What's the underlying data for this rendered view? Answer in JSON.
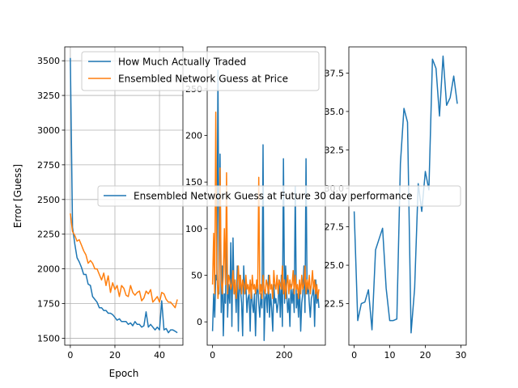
{
  "colors": {
    "blue": "#1f77b4",
    "orange": "#ff7f0e",
    "grid": "#b0b0b0"
  },
  "chart_data": [
    {
      "type": "line",
      "xlabel": "Epoch",
      "ylabel": "Error [Guess]",
      "xlim": [
        -2.5,
        50.5
      ],
      "ylim": [
        1450,
        3600
      ],
      "xticks": [
        0,
        20,
        40
      ],
      "yticks": [
        1500,
        1750,
        2000,
        2250,
        2500,
        2750,
        3000,
        3250,
        3500
      ],
      "grid": true,
      "legend_position": "upper-right",
      "series": [
        {
          "name": "How Much Actually Traded",
          "color": "#1f77b4",
          "x": [
            0,
            1,
            2,
            3,
            4,
            5,
            6,
            7,
            8,
            9,
            10,
            11,
            12,
            13,
            14,
            15,
            16,
            17,
            18,
            19,
            20,
            21,
            22,
            23,
            24,
            25,
            26,
            27,
            28,
            29,
            30,
            31,
            32,
            33,
            34,
            35,
            36,
            37,
            38,
            39,
            40,
            41,
            42,
            43,
            44,
            45,
            46,
            47,
            48
          ],
          "values": [
            3520,
            2300,
            2180,
            2080,
            2050,
            2010,
            1960,
            1960,
            1890,
            1880,
            1800,
            1780,
            1760,
            1720,
            1720,
            1700,
            1700,
            1680,
            1680,
            1670,
            1650,
            1630,
            1640,
            1620,
            1620,
            1620,
            1600,
            1610,
            1590,
            1620,
            1600,
            1600,
            1580,
            1590,
            1690,
            1580,
            1600,
            1580,
            1560,
            1580,
            1560,
            1770,
            1560,
            1570,
            1540,
            1560,
            1560,
            1550,
            1540
          ]
        },
        {
          "name": "Ensembled Network Guess at Price",
          "color": "#ff7f0e",
          "x": [
            0,
            1,
            2,
            3,
            4,
            5,
            6,
            7,
            8,
            9,
            10,
            11,
            12,
            13,
            14,
            15,
            16,
            17,
            18,
            19,
            20,
            21,
            22,
            23,
            24,
            25,
            26,
            27,
            28,
            29,
            30,
            31,
            32,
            33,
            34,
            35,
            36,
            37,
            38,
            39,
            40,
            41,
            42,
            43,
            44,
            45,
            46,
            47,
            48
          ],
          "values": [
            2400,
            2270,
            2240,
            2200,
            2210,
            2170,
            2130,
            2100,
            2040,
            2060,
            2040,
            2000,
            2000,
            1960,
            1920,
            1970,
            1880,
            1950,
            1830,
            1900,
            1850,
            1880,
            1800,
            1880,
            1860,
            1810,
            1800,
            1880,
            1830,
            1810,
            1830,
            1840,
            1770,
            1790,
            1840,
            1820,
            1850,
            1760,
            1780,
            1800,
            1760,
            1830,
            1820,
            1780,
            1760,
            1760,
            1740,
            1720,
            1780
          ]
        }
      ]
    },
    {
      "type": "line",
      "xlim": [
        -15,
        315
      ],
      "ylim": [
        -25,
        295
      ],
      "xticks": [
        0,
        200
      ],
      "yticks": [
        0,
        50,
        100,
        150,
        200,
        250
      ],
      "grid": false,
      "series": [
        {
          "color": "#1f77b4",
          "x": [
            0,
            3,
            6,
            9,
            12,
            15,
            18,
            21,
            24,
            27,
            30,
            33,
            36,
            39,
            42,
            45,
            48,
            51,
            54,
            57,
            60,
            63,
            66,
            69,
            72,
            75,
            78,
            81,
            84,
            87,
            90,
            93,
            96,
            99,
            102,
            105,
            108,
            111,
            114,
            117,
            120,
            123,
            126,
            129,
            132,
            135,
            138,
            141,
            144,
            147,
            150,
            153,
            156,
            159,
            162,
            165,
            168,
            171,
            174,
            177,
            180,
            183,
            186,
            189,
            192,
            195,
            198,
            201,
            204,
            207,
            210,
            213,
            216,
            219,
            222,
            225,
            228,
            231,
            234,
            237,
            240,
            243,
            246,
            249,
            252,
            255,
            258,
            261,
            264,
            267,
            270,
            273,
            276,
            279,
            282,
            285,
            288,
            291,
            294,
            297
          ],
          "values": [
            -10,
            30,
            5,
            50,
            45,
            270,
            30,
            180,
            10,
            60,
            -15,
            30,
            20,
            110,
            5,
            40,
            20,
            85,
            -5,
            90,
            30,
            40,
            10,
            60,
            -10,
            50,
            35,
            20,
            -15,
            60,
            30,
            40,
            10,
            25,
            30,
            -10,
            40,
            20,
            10,
            30,
            -15,
            30,
            40,
            20,
            5,
            30,
            15,
            190,
            -20,
            25,
            30,
            10,
            50,
            5,
            30,
            15,
            -10,
            40,
            20,
            25,
            10,
            20,
            45,
            5,
            50,
            -5,
            175,
            20,
            60,
            30,
            10,
            25,
            -5,
            40,
            20,
            35,
            10,
            145,
            15,
            30,
            5,
            40,
            -10,
            20,
            30,
            60,
            10,
            175,
            30,
            40,
            20,
            5,
            25,
            30,
            40,
            -5,
            45,
            20,
            30,
            15
          ]
        },
        {
          "color": "#ff7f0e",
          "x": [
            0,
            3,
            6,
            9,
            12,
            15,
            18,
            21,
            24,
            27,
            30,
            33,
            36,
            39,
            42,
            45,
            48,
            51,
            54,
            57,
            60,
            63,
            66,
            69,
            72,
            75,
            78,
            81,
            84,
            87,
            90,
            93,
            96,
            99,
            102,
            105,
            108,
            111,
            114,
            117,
            120,
            123,
            126,
            129,
            132,
            135,
            138,
            141,
            144,
            147,
            150,
            153,
            156,
            159,
            162,
            165,
            168,
            171,
            174,
            177,
            180,
            183,
            186,
            189,
            192,
            195,
            198,
            201,
            204,
            207,
            210,
            213,
            216,
            219,
            222,
            225,
            228,
            231,
            234,
            237,
            240,
            243,
            246,
            249,
            252,
            255,
            258,
            261,
            264,
            267,
            270,
            273,
            276,
            279,
            282,
            285,
            288,
            291,
            294,
            297
          ],
          "values": [
            40,
            95,
            30,
            225,
            60,
            25,
            40,
            165,
            45,
            30,
            50,
            100,
            40,
            160,
            30,
            50,
            45,
            35,
            40,
            55,
            30,
            45,
            25,
            40,
            60,
            35,
            50,
            30,
            45,
            40,
            30,
            50,
            35,
            40,
            30,
            45,
            25,
            50,
            35,
            40,
            30,
            45,
            35,
            155,
            30,
            40,
            25,
            50,
            35,
            30,
            45,
            40,
            30,
            50,
            35,
            40,
            25,
            55,
            40,
            35,
            50,
            30,
            45,
            40,
            35,
            60,
            30,
            45,
            25,
            40,
            50,
            30,
            45,
            35,
            40,
            55,
            30,
            50,
            35,
            40,
            25,
            45,
            30,
            50,
            35,
            40,
            60,
            30,
            45,
            35,
            50,
            30,
            40,
            55,
            35,
            45,
            30,
            40,
            25,
            35
          ]
        }
      ]
    },
    {
      "type": "line",
      "xlim": [
        -1.5,
        31.5
      ],
      "ylim": [
        19.8,
        39.2
      ],
      "xticks": [
        0,
        10,
        20,
        30
      ],
      "yticks": [
        22.5,
        25.0,
        27.5,
        30.0,
        32.5,
        35.0,
        37.5
      ],
      "grid": false,
      "series": [
        {
          "color": "#1f77b4",
          "x": [
            0,
            1,
            2,
            3,
            4,
            5,
            6,
            7,
            8,
            9,
            10,
            11,
            12,
            13,
            14,
            15,
            16,
            17,
            18,
            19,
            20,
            21,
            22,
            23,
            24,
            25,
            26,
            27,
            28,
            29
          ],
          "values": [
            28.5,
            21.4,
            22.5,
            22.6,
            23.4,
            20.8,
            26.0,
            26.7,
            27.4,
            23.5,
            21.4,
            21.4,
            21.5,
            31.6,
            35.2,
            34.3,
            20.6,
            23.5,
            30.3,
            28.5,
            31.1,
            29.9,
            38.4,
            37.8,
            34.7,
            38.6,
            35.4,
            35.9,
            37.3,
            35.5
          ]
        }
      ]
    }
  ],
  "legends": {
    "top": {
      "items": [
        "How Much Actually Traded",
        "Ensembled Network Guess at Price"
      ]
    },
    "middle": {
      "items": [
        "Ensembled Network Guess at Future 30 day performance"
      ]
    }
  }
}
